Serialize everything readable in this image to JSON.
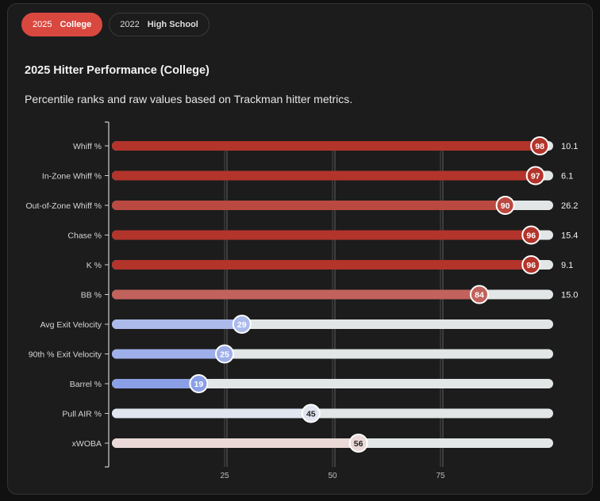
{
  "tabs": [
    {
      "year": "2025",
      "level": "College",
      "active": true
    },
    {
      "year": "2022",
      "level": "High School",
      "active": false
    }
  ],
  "colors": {
    "accent": "#d9483f",
    "high": "#b3342b",
    "low": "#7e94e6",
    "track": "#e2e6e6"
  },
  "chart_data": {
    "type": "bar",
    "title": "2025 Hitter Performance (College)",
    "subtitle": "Percentile ranks and raw values based on Trackman hitter metrics.",
    "xlim": [
      0,
      100
    ],
    "xticks": [
      25,
      50,
      75
    ],
    "grid": true,
    "categories": [
      "Whiff %",
      "In-Zone Whiff %",
      "Out-of-Zone Whiff %",
      "Chase %",
      "K %",
      "BB %",
      "Avg Exit Velocity",
      "90th % Exit Velocity",
      "Barrel %",
      "Pull AIR %",
      "xWOBA"
    ],
    "values": [
      98,
      97,
      90,
      96,
      96,
      84,
      29,
      25,
      19,
      45,
      56
    ],
    "raw_values": [
      "10.1",
      "6.1",
      "26.2",
      "15.4",
      "9.1",
      "15.0",
      "",
      "",
      "",
      "",
      ""
    ]
  }
}
